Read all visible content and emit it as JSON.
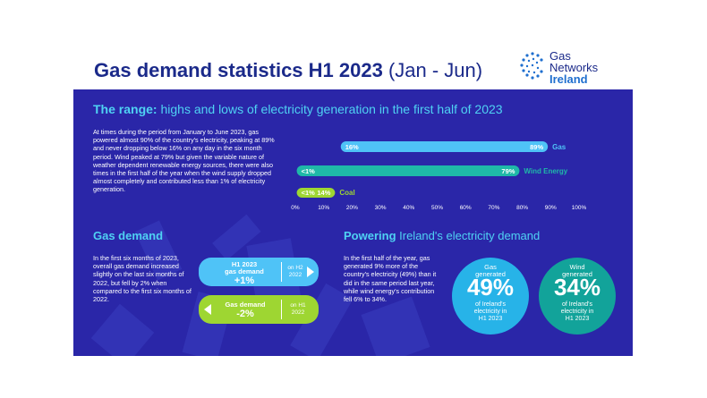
{
  "header": {
    "title_bold": "Gas demand statistics H1 2023",
    "title_light": "(Jan - Jun)",
    "logo_line1": "Gas",
    "logo_line2": "Networks",
    "logo_line3": "Ireland"
  },
  "range": {
    "heading_bold": "The range:",
    "heading_rest": "highs and lows of electricity generation in the first half of 2023",
    "paragraph": "At times during the period from January to June 2023, gas powered almost 90% of the country's electricity, peaking at 89% and never dropping below 16% on any day in the six month period. Wind peaked at 79% but given the variable nature of weather dependent renewable energy sources, there were also times in the first half of the year when the wind supply dropped almost completely and contributed less than 1% of electricity generation."
  },
  "chart_data": {
    "type": "bar",
    "orientation": "horizontal-range",
    "xlim": [
      0,
      100
    ],
    "x_ticks": [
      "0%",
      "10%",
      "20%",
      "30%",
      "40%",
      "50%",
      "60%",
      "70%",
      "80%",
      "90%",
      "100%"
    ],
    "series": [
      {
        "name": "Gas",
        "min": 16,
        "max": 89,
        "min_label": "16%",
        "max_label": "89%",
        "color": "#4fc3f7"
      },
      {
        "name": "Wind Energy",
        "min": 0.5,
        "max": 79,
        "min_label": "<1%",
        "max_label": "79%",
        "color": "#1fb8a8"
      },
      {
        "name": "Coal",
        "min": 0.5,
        "max": 14,
        "min_label": "<1%",
        "max_label": "14%",
        "color": "#9ed632"
      }
    ]
  },
  "gas_demand": {
    "heading": "Gas demand",
    "paragraph": "In the first six months of 2023, overall gas demand increased slightly on the last six months of 2022, but fell by 2% when compared to the first six months of 2022.",
    "pill1": {
      "line1": "H1 2023",
      "line2": "gas demand",
      "value": "+1%",
      "sub1": "on H2",
      "sub2": "2022"
    },
    "pill2": {
      "line1": "Gas demand",
      "value": "-2%",
      "sub1": "on H1",
      "sub2": "2022"
    }
  },
  "powering": {
    "heading_bold": "Powering",
    "heading_rest": "Ireland's electricity demand",
    "paragraph": "In the first half of the year, gas generated 9% more of the country's electricity (49%) than it did in the same period last year, while wind energy's contribution fell 6% to 34%.",
    "circle1": {
      "top1": "Gas",
      "top2": "generated",
      "pct": "49%",
      "b1": "of Ireland's",
      "b2": "electricity in",
      "b3": "H1 2023"
    },
    "circle2": {
      "top1": "Wind",
      "top2": "generated",
      "pct": "34%",
      "b1": "of Ireland's",
      "b2": "electricity in",
      "b3": "H1 2023"
    }
  },
  "colors": {
    "navy": "#1b2a8a",
    "panel": "#2a26a8",
    "cyan": "#4fc3f7",
    "teal": "#1fb8a8",
    "green": "#9ed632"
  }
}
